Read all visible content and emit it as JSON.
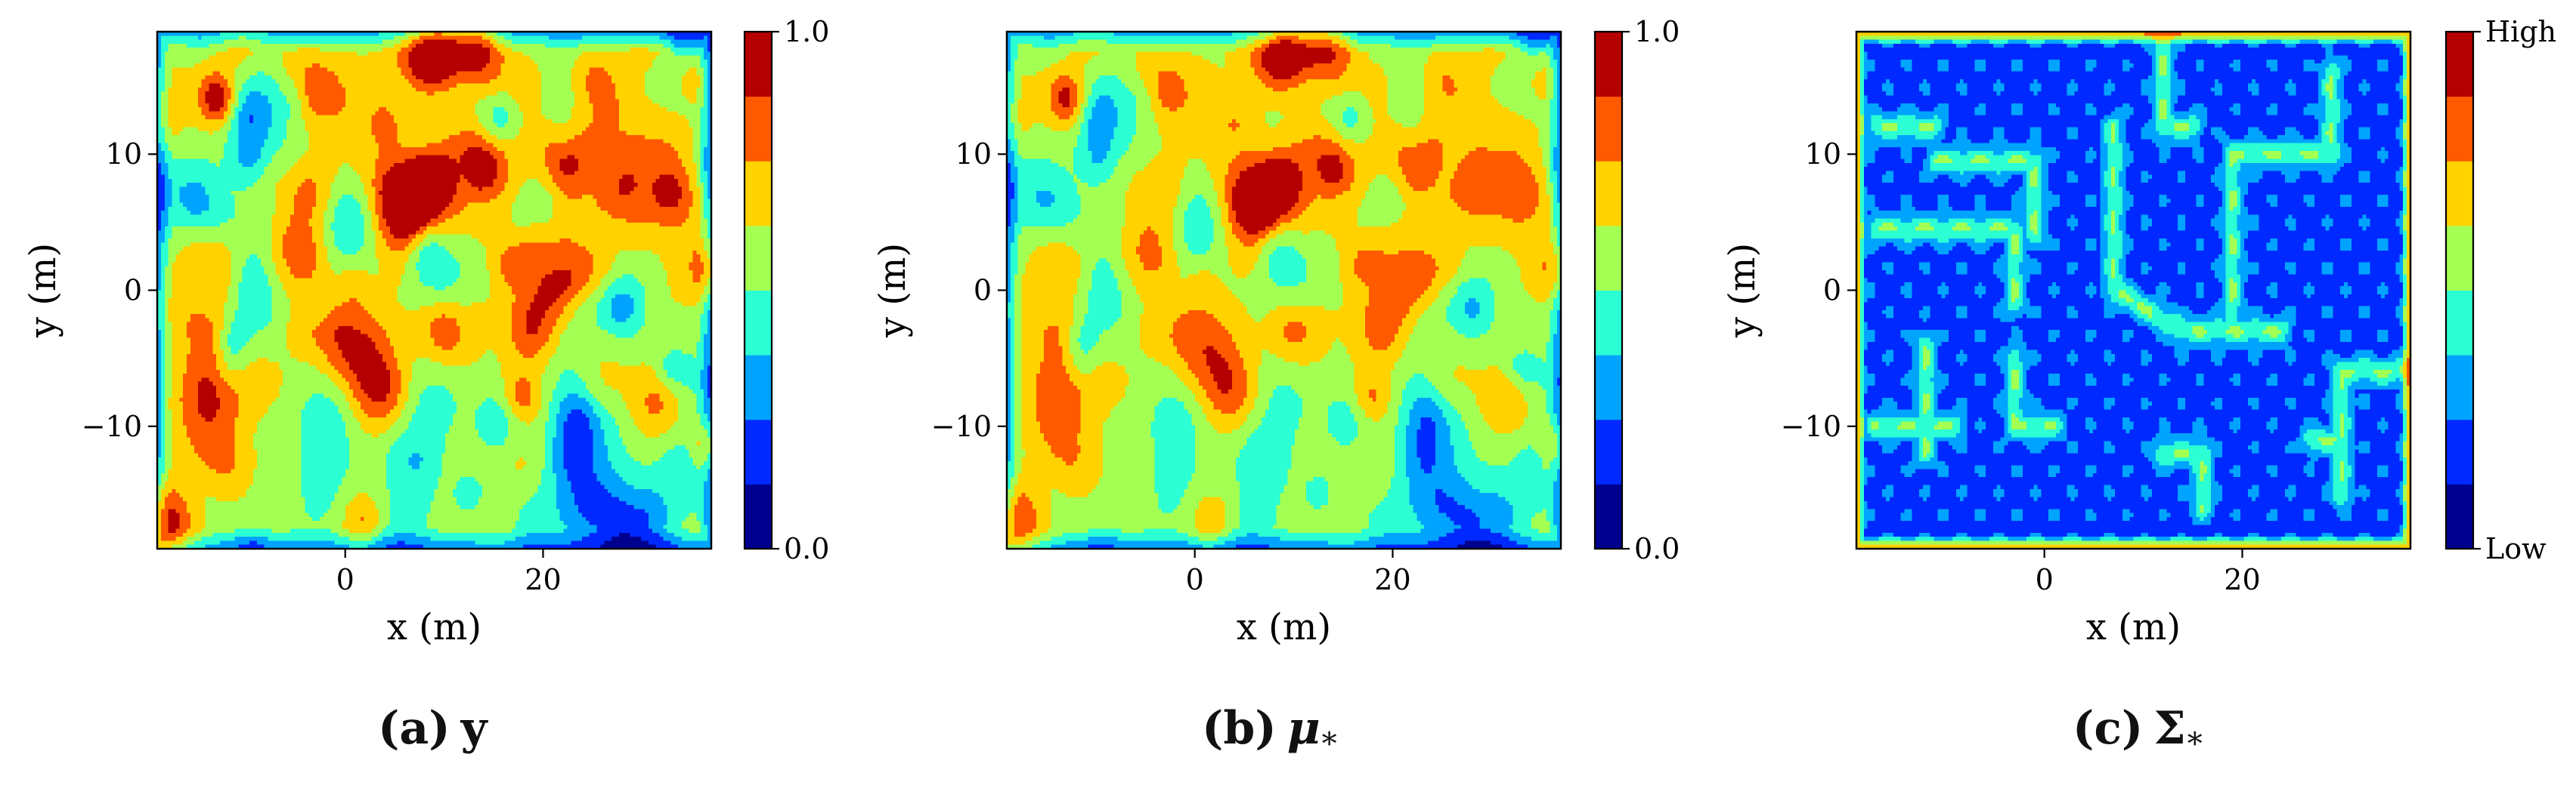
{
  "chart_data": [
    {
      "type": "heatmap",
      "panel_label": "(a)",
      "caption_symbol": "y",
      "caption_subscript": "",
      "xlabel": "x (m)",
      "ylabel": "y (m)",
      "xlim": [
        -19,
        37
      ],
      "ylim": [
        -19,
        19
      ],
      "xticks": [
        0,
        20
      ],
      "xtick_labels": [
        "0",
        "20"
      ],
      "yticks": [
        -10,
        0,
        10
      ],
      "ytick_labels": [
        "−10",
        "0",
        "10"
      ],
      "colormap": "jet",
      "levels": 8,
      "colorbar": {
        "min": 0.0,
        "max": 1.0,
        "top_label": "1.0",
        "bottom_label": "0.0"
      },
      "field": "random-field-high-contrast",
      "seed": 7
    },
    {
      "type": "heatmap",
      "panel_label": "(b)",
      "caption_symbol": "μ",
      "caption_subscript": "*",
      "xlabel": "x (m)",
      "ylabel": "y (m)",
      "xlim": [
        -19,
        37
      ],
      "ylim": [
        -19,
        19
      ],
      "xticks": [
        0,
        20
      ],
      "xtick_labels": [
        "0",
        "20"
      ],
      "yticks": [
        -10,
        0,
        10
      ],
      "ytick_labels": [
        "−10",
        "0",
        "10"
      ],
      "colormap": "jet",
      "levels": 8,
      "colorbar": {
        "min": 0.0,
        "max": 1.0,
        "top_label": "1.0",
        "bottom_label": "0.0"
      },
      "field": "random-field-smoothed",
      "seed": 7
    },
    {
      "type": "heatmap",
      "panel_label": "(c)",
      "caption_symbol": "Σ",
      "caption_subscript": "*",
      "xlabel": "x (m)",
      "ylabel": "y (m)",
      "xlim": [
        -19,
        37
      ],
      "ylim": [
        -19,
        19
      ],
      "xticks": [
        0,
        20
      ],
      "xtick_labels": [
        "0",
        "20"
      ],
      "yticks": [
        -10,
        0,
        10
      ],
      "ytick_labels": [
        "−10",
        "0",
        "10"
      ],
      "colormap": "jet",
      "levels": 8,
      "colorbar": {
        "top_label": "High",
        "bottom_label": "Low"
      },
      "field": "variance-low-with-path-ridges",
      "path_segments": [
        [
          [
            -17,
            12
          ],
          [
            -11,
            12
          ]
        ],
        [
          [
            -11,
            9.5
          ],
          [
            -1,
            9.5
          ]
        ],
        [
          [
            -1,
            9.5
          ],
          [
            -1,
            4
          ]
        ],
        [
          [
            -17,
            4.5
          ],
          [
            -3,
            4.5
          ]
        ],
        [
          [
            -3,
            4.5
          ],
          [
            -3,
            -1
          ]
        ],
        [
          [
            7,
            12
          ],
          [
            7,
            0
          ]
        ],
        [
          [
            7,
            0
          ],
          [
            14,
            -3
          ]
        ],
        [
          [
            14,
            -3
          ],
          [
            24,
            -3
          ]
        ],
        [
          [
            12,
            18
          ],
          [
            12,
            12
          ]
        ],
        [
          [
            12,
            12
          ],
          [
            15,
            12
          ]
        ],
        [
          [
            19,
            10
          ],
          [
            19,
            -3
          ]
        ],
        [
          [
            19,
            10
          ],
          [
            29,
            10
          ]
        ],
        [
          [
            29,
            16
          ],
          [
            29,
            10
          ]
        ],
        [
          [
            -12,
            -4
          ],
          [
            -12,
            -12
          ]
        ],
        [
          [
            -17,
            -10
          ],
          [
            -9,
            -10
          ]
        ],
        [
          [
            -3,
            -5
          ],
          [
            -3,
            -10
          ]
        ],
        [
          [
            -3,
            -10
          ],
          [
            1,
            -10
          ]
        ],
        [
          [
            12,
            -12
          ],
          [
            16,
            -12
          ]
        ],
        [
          [
            16,
            -12
          ],
          [
            16,
            -16
          ]
        ],
        [
          [
            27,
            -11
          ],
          [
            30,
            -11
          ]
        ],
        [
          [
            30,
            -6
          ],
          [
            30,
            -15
          ]
        ],
        [
          [
            30,
            -6
          ],
          [
            36,
            -6
          ]
        ]
      ]
    }
  ]
}
